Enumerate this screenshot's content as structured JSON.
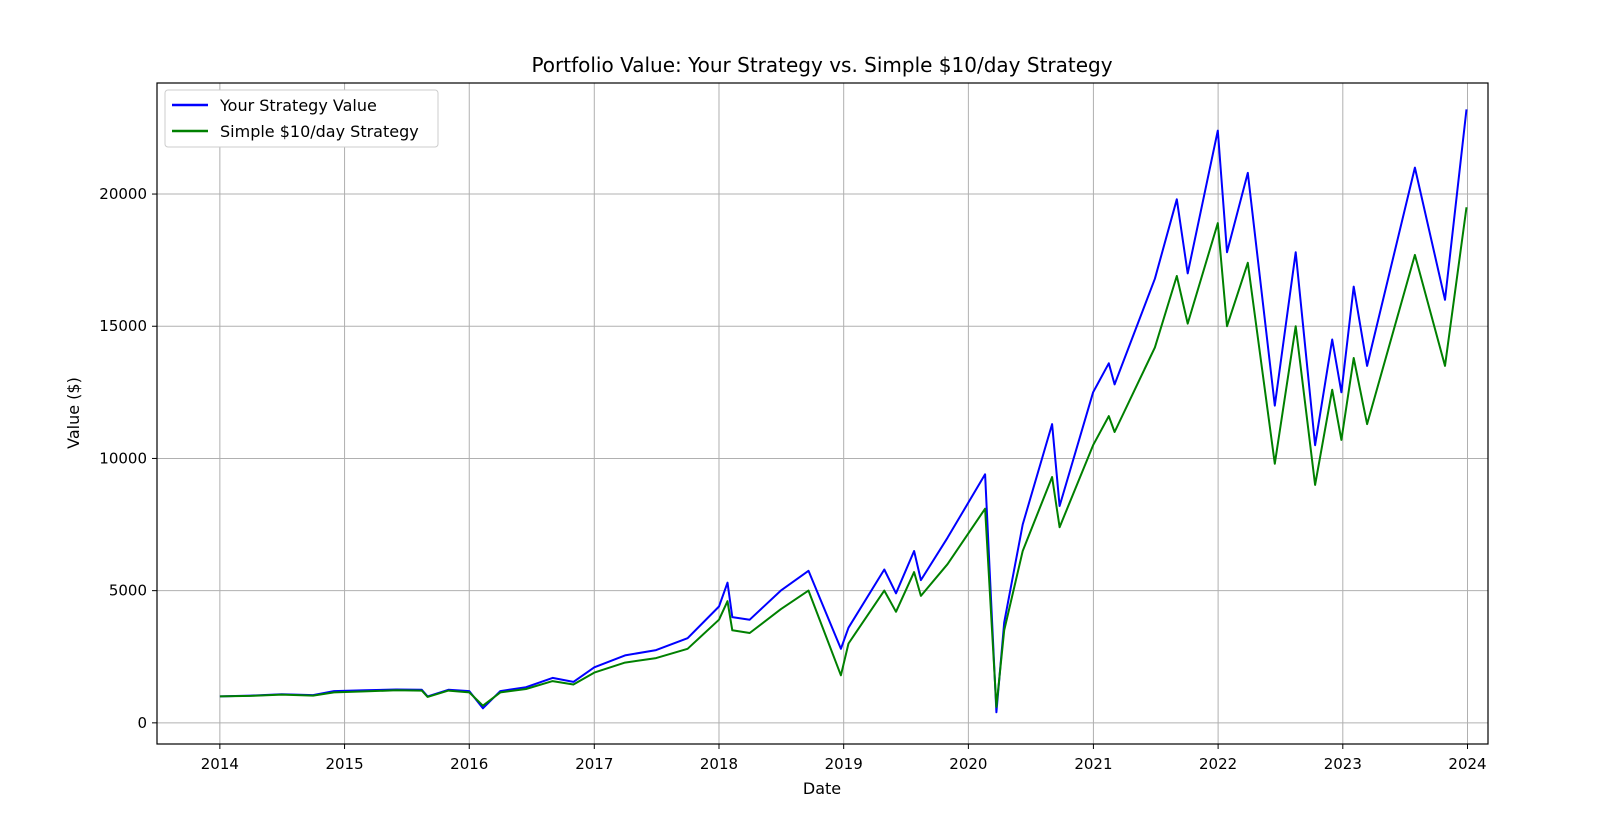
{
  "chart_data": {
    "type": "line",
    "title": "Portfolio Value: Your Strategy vs. Simple $10/day Strategy",
    "xlabel": "Date",
    "ylabel": "Value ($)",
    "xlim": [
      "2013-07-01",
      "2024-03-01"
    ],
    "ylim": [
      -800,
      24200
    ],
    "x_ticks": [
      "2014",
      "2015",
      "2016",
      "2017",
      "2018",
      "2019",
      "2020",
      "2021",
      "2022",
      "2023",
      "2024"
    ],
    "y_ticks": [
      0,
      5000,
      10000,
      15000,
      20000
    ],
    "grid": true,
    "legend_position": "top-left",
    "series": [
      {
        "name": "Your Strategy Value",
        "color": "#0000ff",
        "points": [
          [
            "2014-01-01",
            1000
          ],
          [
            "2014-04-01",
            1030
          ],
          [
            "2014-07-01",
            1080
          ],
          [
            "2014-10-01",
            1050
          ],
          [
            "2014-12-01",
            1200
          ],
          [
            "2015-03-01",
            1230
          ],
          [
            "2015-06-01",
            1260
          ],
          [
            "2015-08-15",
            1250
          ],
          [
            "2015-09-01",
            1000
          ],
          [
            "2015-11-01",
            1250
          ],
          [
            "2016-01-01",
            1200
          ],
          [
            "2016-02-10",
            550
          ],
          [
            "2016-04-01",
            1200
          ],
          [
            "2016-06-15",
            1350
          ],
          [
            "2016-09-01",
            1700
          ],
          [
            "2016-11-01",
            1550
          ],
          [
            "2017-01-01",
            2100
          ],
          [
            "2017-04-01",
            2550
          ],
          [
            "2017-07-01",
            2750
          ],
          [
            "2017-10-01",
            3200
          ],
          [
            "2018-01-01",
            4400
          ],
          [
            "2018-01-26",
            5300
          ],
          [
            "2018-02-09",
            4000
          ],
          [
            "2018-04-01",
            3900
          ],
          [
            "2018-07-01",
            5000
          ],
          [
            "2018-09-20",
            5750
          ],
          [
            "2018-12-24",
            2800
          ],
          [
            "2019-01-15",
            3600
          ],
          [
            "2019-04-30",
            5800
          ],
          [
            "2019-06-03",
            4900
          ],
          [
            "2019-07-26",
            6500
          ],
          [
            "2019-08-15",
            5400
          ],
          [
            "2019-11-01",
            7000
          ],
          [
            "2020-02-19",
            9400
          ],
          [
            "2020-03-23",
            400
          ],
          [
            "2020-04-15",
            3800
          ],
          [
            "2020-06-08",
            7500
          ],
          [
            "2020-09-02",
            11300
          ],
          [
            "2020-09-24",
            8200
          ],
          [
            "2020-12-31",
            12500
          ],
          [
            "2021-02-15",
            13600
          ],
          [
            "2021-03-04",
            12800
          ],
          [
            "2021-06-30",
            16800
          ],
          [
            "2021-09-02",
            19800
          ],
          [
            "2021-10-04",
            17000
          ],
          [
            "2021-12-31",
            22400
          ],
          [
            "2022-01-27",
            17800
          ],
          [
            "2022-03-29",
            20800
          ],
          [
            "2022-06-16",
            12000
          ],
          [
            "2022-08-16",
            17800
          ],
          [
            "2022-10-12",
            10500
          ],
          [
            "2022-12-01",
            14500
          ],
          [
            "2022-12-28",
            12500
          ],
          [
            "2023-02-02",
            16500
          ],
          [
            "2023-03-13",
            13500
          ],
          [
            "2023-07-31",
            21000
          ],
          [
            "2023-10-27",
            16000
          ],
          [
            "2023-12-29",
            23200
          ]
        ]
      },
      {
        "name": "Simple $10/day Strategy",
        "color": "#008000",
        "points": [
          [
            "2014-01-01",
            1000
          ],
          [
            "2014-04-01",
            1020
          ],
          [
            "2014-07-01",
            1070
          ],
          [
            "2014-10-01",
            1030
          ],
          [
            "2014-12-01",
            1150
          ],
          [
            "2015-03-01",
            1190
          ],
          [
            "2015-06-01",
            1230
          ],
          [
            "2015-08-15",
            1220
          ],
          [
            "2015-09-01",
            980
          ],
          [
            "2015-11-01",
            1220
          ],
          [
            "2016-01-01",
            1150
          ],
          [
            "2016-02-10",
            650
          ],
          [
            "2016-04-01",
            1150
          ],
          [
            "2016-06-15",
            1280
          ],
          [
            "2016-09-01",
            1580
          ],
          [
            "2016-11-01",
            1450
          ],
          [
            "2017-01-01",
            1900
          ],
          [
            "2017-04-01",
            2280
          ],
          [
            "2017-07-01",
            2450
          ],
          [
            "2017-10-01",
            2800
          ],
          [
            "2018-01-01",
            3900
          ],
          [
            "2018-01-26",
            4600
          ],
          [
            "2018-02-09",
            3500
          ],
          [
            "2018-04-01",
            3400
          ],
          [
            "2018-07-01",
            4300
          ],
          [
            "2018-09-20",
            5000
          ],
          [
            "2018-12-24",
            1800
          ],
          [
            "2019-01-15",
            3000
          ],
          [
            "2019-04-30",
            5000
          ],
          [
            "2019-06-03",
            4200
          ],
          [
            "2019-07-26",
            5700
          ],
          [
            "2019-08-15",
            4800
          ],
          [
            "2019-11-01",
            6000
          ],
          [
            "2020-02-19",
            8100
          ],
          [
            "2020-03-23",
            600
          ],
          [
            "2020-04-15",
            3500
          ],
          [
            "2020-06-08",
            6500
          ],
          [
            "2020-09-02",
            9300
          ],
          [
            "2020-09-24",
            7400
          ],
          [
            "2020-12-31",
            10500
          ],
          [
            "2021-02-15",
            11600
          ],
          [
            "2021-03-04",
            11000
          ],
          [
            "2021-06-30",
            14200
          ],
          [
            "2021-09-02",
            16900
          ],
          [
            "2021-10-04",
            15100
          ],
          [
            "2021-12-31",
            18900
          ],
          [
            "2022-01-27",
            15000
          ],
          [
            "2022-03-29",
            17400
          ],
          [
            "2022-06-16",
            9800
          ],
          [
            "2022-08-16",
            15000
          ],
          [
            "2022-10-12",
            9000
          ],
          [
            "2022-12-01",
            12600
          ],
          [
            "2022-12-28",
            10700
          ],
          [
            "2023-02-02",
            13800
          ],
          [
            "2023-03-13",
            11300
          ],
          [
            "2023-07-31",
            17700
          ],
          [
            "2023-10-27",
            13500
          ],
          [
            "2023-12-29",
            19500
          ]
        ]
      }
    ]
  }
}
